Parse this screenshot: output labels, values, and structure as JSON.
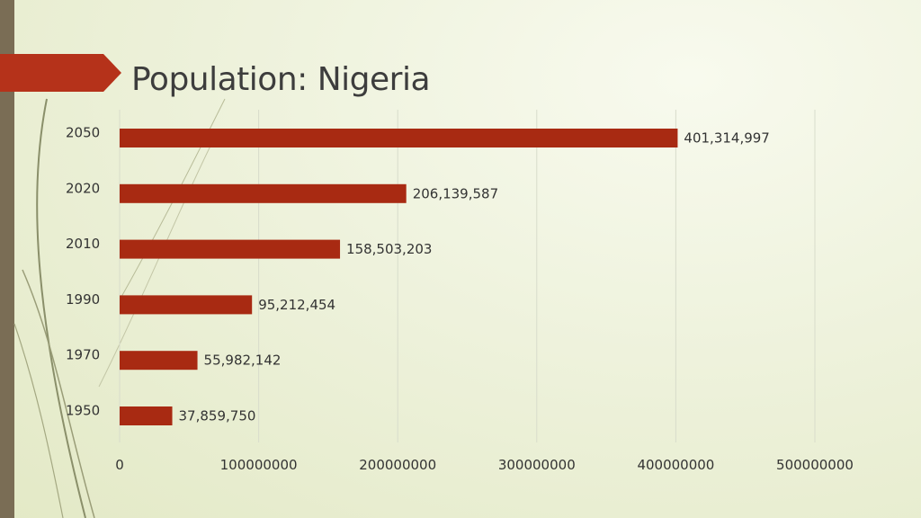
{
  "slide": {
    "title": "Population: Nigeria",
    "accent_color": "#b5321a",
    "sidebar_color": "#7a6d55"
  },
  "chart_data": {
    "type": "bar",
    "orientation": "horizontal",
    "categories": [
      "2050",
      "2020",
      "2010",
      "1990",
      "1970",
      "1950"
    ],
    "values": [
      401314997,
      206139587,
      158503203,
      95212454,
      55982142,
      37859750
    ],
    "data_labels": [
      "401,314,997",
      "206,139,587",
      "158,503,203",
      "95,212,454",
      "55,982,142",
      "37,859,750"
    ],
    "xlim": [
      0,
      500000000
    ],
    "x_ticks": [
      0,
      100000000,
      200000000,
      300000000,
      400000000,
      500000000
    ],
    "x_tick_labels": [
      "0",
      "100000000",
      "200000000",
      "300000000",
      "400000000",
      "500000000"
    ],
    "grid": "vertical",
    "bar_color": "#a82a12"
  }
}
